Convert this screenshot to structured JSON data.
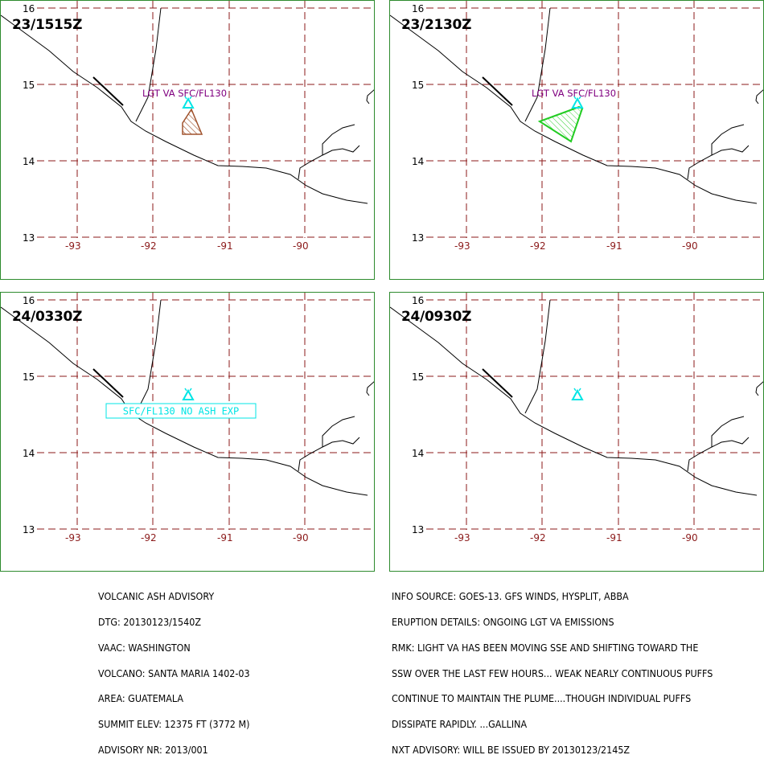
{
  "panels": [
    {
      "title": "23/1515Z",
      "layer_label": "LGT VA SFC/FL130",
      "plume": "brown"
    },
    {
      "title": "23/2130Z",
      "layer_label": "LGT VA SFC/FL130",
      "plume": "green"
    },
    {
      "title": "24/0330Z",
      "box_label": "SFC/FL130 NO ASH EXP",
      "plume": "none"
    },
    {
      "title": "24/0930Z",
      "plume": "none"
    }
  ],
  "map": {
    "lat_labels": [
      "16",
      "15",
      "14",
      "13"
    ],
    "lon_labels": [
      "-93",
      "-92",
      "-91",
      "-90"
    ],
    "volcano_symbol": "volcano-triangle-icon",
    "colors": {
      "grid": "#8b1a1a",
      "axis_label": "#8b1a1a",
      "layer_label": "#800080",
      "volcano": "#00e5e5",
      "brown_plume": "#a0522d",
      "green_plume": "#22cc22",
      "panel_border": "#2e8b2e"
    }
  },
  "advisory_left": [
    "VOLCANIC ASH ADVISORY",
    "DTG: 20130123/1540Z",
    "VAAC: WASHINGTON",
    "VOLCANO: SANTA MARIA 1402-03",
    "AREA: GUATEMALA",
    "SUMMIT ELEV: 12375 FT (3772 M)",
    "ADVISORY NR: 2013/001"
  ],
  "advisory_right": [
    "INFO SOURCE: GOES-13. GFS WINDS, HYSPLIT, ABBA",
    "ERUPTION DETAILS: ONGOING LGT VA EMISSIONS",
    "RMK: LIGHT VA HAS BEEN MOVING SSE AND SHIFTING TOWARD THE",
    "SSW OVER THE LAST FEW HOURS... WEAK NEARLY CONTINUOUS PUFFS",
    "CONTINUE TO MAINTAIN THE PLUME....THOUGH INDIVIDUAL PUFFS",
    "DISSIPATE RAPIDLY. ...GALLINA",
    "NXT ADVISORY: WILL BE ISSUED BY 20130123/2145Z"
  ]
}
